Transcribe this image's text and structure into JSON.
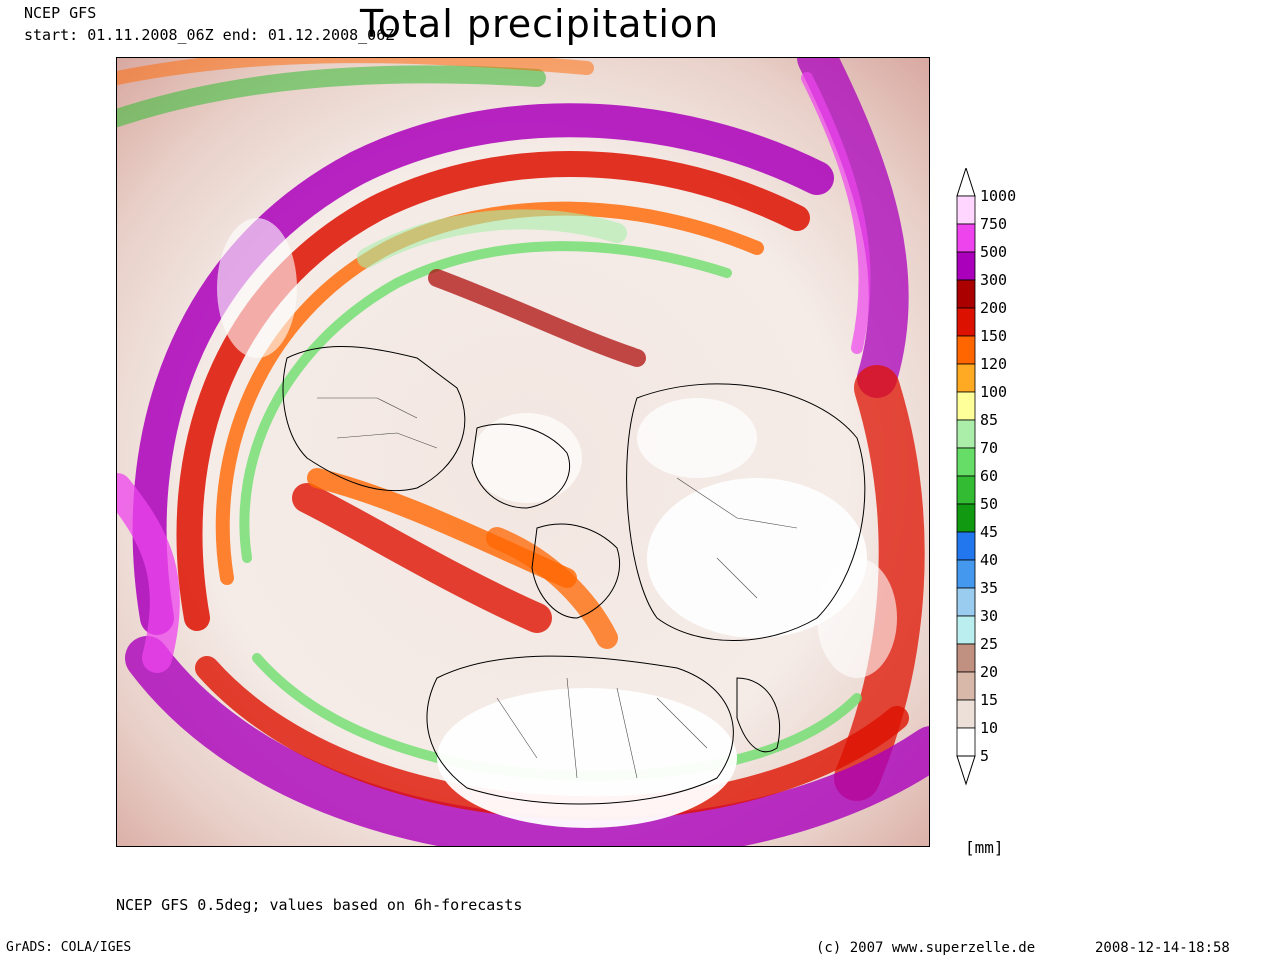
{
  "header": {
    "model": "NCEP GFS",
    "period": "start: 01.11.2008_06Z end: 01.12.2008_06Z",
    "title": "Total precipitation"
  },
  "legend": {
    "unit": "[mm]",
    "levels": [
      "1000",
      "750",
      "500",
      "300",
      "200",
      "150",
      "120",
      "100",
      "85",
      "70",
      "60",
      "50",
      "45",
      "40",
      "35",
      "30",
      "25",
      "20",
      "15",
      "10",
      "5"
    ],
    "colors": [
      "#ffd6ff",
      "#ee44ee",
      "#aa00bb",
      "#aa0000",
      "#dd1100",
      "#ff6600",
      "#ffaa22",
      "#ffff99",
      "#aaeeaa",
      "#66dd66",
      "#33bb33",
      "#119911",
      "#2277ee",
      "#4499ee",
      "#99ccee",
      "#bbeeee",
      "#c09080",
      "#d8b8a8",
      "#ece0d8",
      "#ffffff"
    ]
  },
  "footer": {
    "note": "NCEP GFS 0.5deg; values based on 6h-forecasts",
    "grads": "GrADS: COLA/IGES",
    "copyright": "(c) 2007 www.superzelle.de",
    "timestamp": "2008-12-14-18:58"
  }
}
